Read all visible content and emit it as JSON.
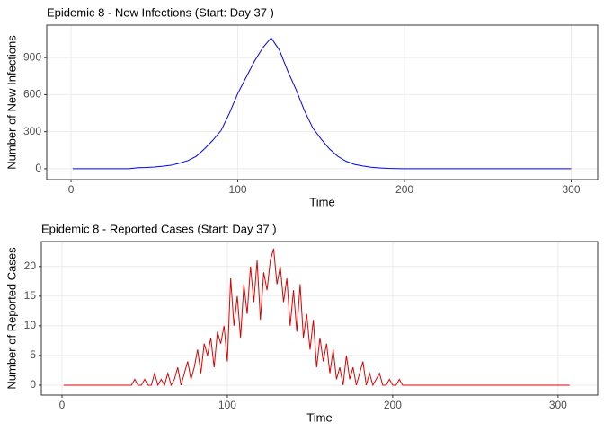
{
  "chart_data": [
    {
      "type": "line",
      "title": "Epidemic 8 - New Infections (Start: Day 37 )",
      "x_label": "Time",
      "y_label": "Number of New Infections",
      "x": [
        1,
        5,
        10,
        15,
        20,
        25,
        30,
        35,
        40,
        45,
        50,
        55,
        60,
        65,
        70,
        75,
        80,
        85,
        90,
        95,
        100,
        105,
        110,
        115,
        120,
        125,
        130,
        135,
        140,
        145,
        150,
        155,
        160,
        165,
        170,
        175,
        180,
        185,
        190,
        195,
        200,
        205,
        210,
        215,
        220,
        225,
        230,
        235,
        240,
        245,
        250,
        255,
        260,
        265,
        270,
        275,
        280,
        285,
        290,
        295,
        300
      ],
      "series": [
        {
          "name": "New Infections",
          "color": "#0000ff",
          "values": [
            0,
            0,
            0,
            0,
            0,
            0,
            0,
            0,
            8,
            10,
            14,
            20,
            28,
            45,
            65,
            100,
            160,
            230,
            310,
            450,
            610,
            740,
            870,
            980,
            1060,
            960,
            790,
            640,
            470,
            330,
            240,
            160,
            100,
            60,
            35,
            22,
            12,
            7,
            3,
            1,
            0,
            0,
            0,
            0,
            0,
            0,
            0,
            0,
            0,
            0,
            0,
            0,
            0,
            0,
            0,
            0,
            0,
            0,
            0,
            0,
            0
          ]
        }
      ],
      "xlim": [
        -14.6,
        315.9
      ],
      "ylim": [
        -88,
        1163
      ],
      "xticks": [
        0,
        100,
        200,
        300
      ],
      "yticks": [
        0,
        300,
        600,
        900
      ],
      "grid": true
    },
    {
      "type": "line",
      "title": "Epidemic 8 - Reported Cases (Start: Day 37 )",
      "x_label": "Time",
      "y_label": "Number of Reported Cases",
      "x": [
        1,
        38,
        40,
        42,
        44,
        46,
        48,
        50,
        52,
        54,
        56,
        58,
        60,
        62,
        64,
        66,
        68,
        70,
        72,
        74,
        76,
        78,
        80,
        82,
        84,
        86,
        88,
        90,
        92,
        94,
        96,
        98,
        100,
        102,
        104,
        106,
        108,
        110,
        112,
        114,
        116,
        118,
        120,
        122,
        124,
        126,
        128,
        130,
        132,
        134,
        136,
        138,
        140,
        142,
        144,
        146,
        148,
        150,
        152,
        154,
        156,
        158,
        160,
        162,
        164,
        166,
        168,
        170,
        172,
        174,
        176,
        178,
        180,
        182,
        184,
        186,
        188,
        190,
        192,
        194,
        196,
        198,
        200,
        202,
        204,
        206,
        208,
        210,
        307
      ],
      "series": [
        {
          "name": "Reported Cases",
          "color": "#e00000",
          "values": [
            0,
            0,
            0,
            0,
            1,
            0,
            0,
            1,
            0,
            0,
            2,
            0,
            1,
            0,
            2,
            0,
            1,
            3,
            0,
            2,
            4,
            1,
            3,
            6,
            2,
            7,
            5,
            8,
            3,
            9,
            7,
            10,
            4,
            18,
            10,
            15,
            8,
            17,
            12,
            20,
            14,
            21,
            11,
            19,
            16,
            21,
            23,
            17,
            20,
            14,
            18,
            10,
            16,
            9,
            17,
            8,
            12,
            6,
            11,
            3,
            8,
            4,
            7,
            2,
            6,
            1,
            3,
            0,
            5,
            1,
            3,
            0,
            2,
            4,
            0,
            2,
            0,
            1,
            2,
            0,
            0,
            1,
            0,
            0,
            1,
            0,
            0,
            0,
            0
          ]
        }
      ],
      "xlim": [
        -12.5,
        324
      ],
      "ylim": [
        -1.67,
        24.2
      ],
      "xticks": [
        0,
        100,
        200,
        300
      ],
      "yticks": [
        0,
        5,
        10,
        15,
        20
      ],
      "grid": true
    }
  ]
}
